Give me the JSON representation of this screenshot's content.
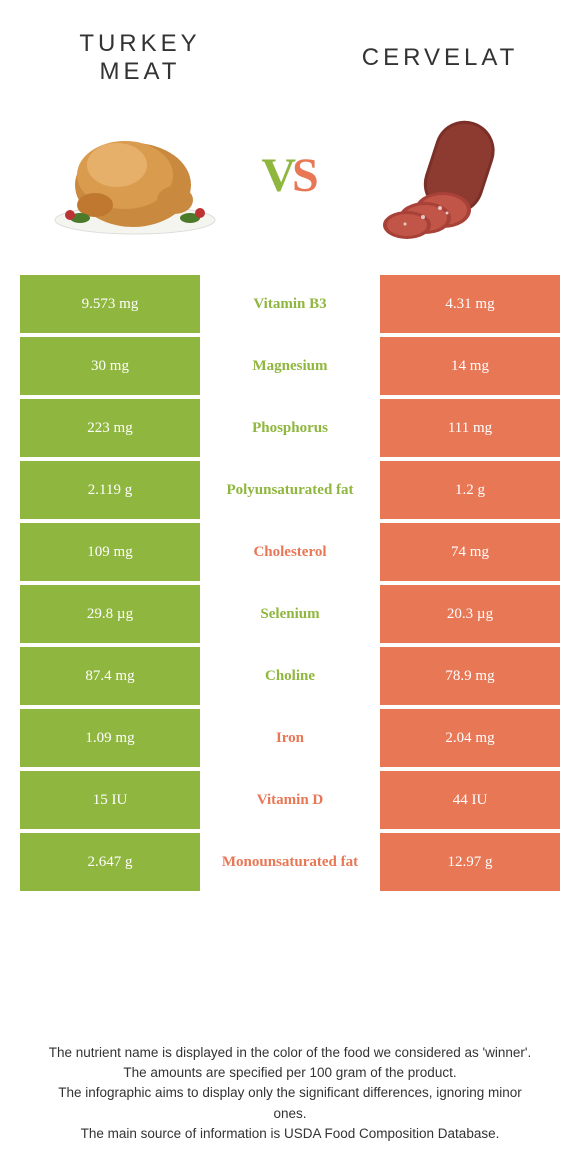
{
  "colors": {
    "left": "#8fb63e",
    "right": "#e87756",
    "row_text": "#ffffff",
    "background": "#ffffff"
  },
  "foods": {
    "left": {
      "title": "TURKEY MEAT"
    },
    "right": {
      "title": "CERVELAT"
    }
  },
  "vs_label": {
    "v": "V",
    "s": "S"
  },
  "rows": [
    {
      "left": "9.573 mg",
      "nutrient": "Vitamin B3",
      "right": "4.31 mg",
      "winner": "left"
    },
    {
      "left": "30 mg",
      "nutrient": "Magnesium",
      "right": "14 mg",
      "winner": "left"
    },
    {
      "left": "223 mg",
      "nutrient": "Phosphorus",
      "right": "111 mg",
      "winner": "left"
    },
    {
      "left": "2.119 g",
      "nutrient": "Polyunsaturated fat",
      "right": "1.2 g",
      "winner": "left"
    },
    {
      "left": "109 mg",
      "nutrient": "Cholesterol",
      "right": "74 mg",
      "winner": "right"
    },
    {
      "left": "29.8 µg",
      "nutrient": "Selenium",
      "right": "20.3 µg",
      "winner": "left"
    },
    {
      "left": "87.4 mg",
      "nutrient": "Choline",
      "right": "78.9 mg",
      "winner": "left"
    },
    {
      "left": "1.09 mg",
      "nutrient": "Iron",
      "right": "2.04 mg",
      "winner": "right"
    },
    {
      "left": "15 IU",
      "nutrient": "Vitamin D",
      "right": "44 IU",
      "winner": "right"
    },
    {
      "left": "2.647 g",
      "nutrient": "Monounsaturated fat",
      "right": "12.97 g",
      "winner": "right"
    }
  ],
  "footer": {
    "line1": "The nutrient name is displayed in the color of the food we considered as 'winner'.",
    "line2": "The amounts are specified per 100 gram of the product.",
    "line3": "The infographic aims to display only the significant differences, ignoring minor ones.",
    "line4": "The main source of information is USDA Food Composition Database."
  }
}
